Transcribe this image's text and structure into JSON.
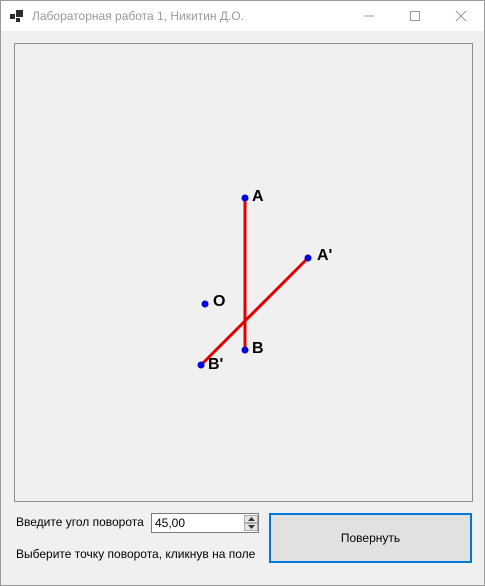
{
  "window": {
    "title": "Лабораторная работа 1, Никитин Д.О."
  },
  "canvas": {
    "line_color": "#e00000",
    "point_color": "#0000e0",
    "points": {
      "A": "A",
      "B": "B",
      "A_prime": "A'",
      "B_prime": "B'",
      "O": "O"
    }
  },
  "controls": {
    "angle_label": "Введите угол поворота",
    "angle_value": "45,00",
    "hint": "Выберите точку поворота, кликнув на поле",
    "rotate_button": "Повернуть"
  }
}
